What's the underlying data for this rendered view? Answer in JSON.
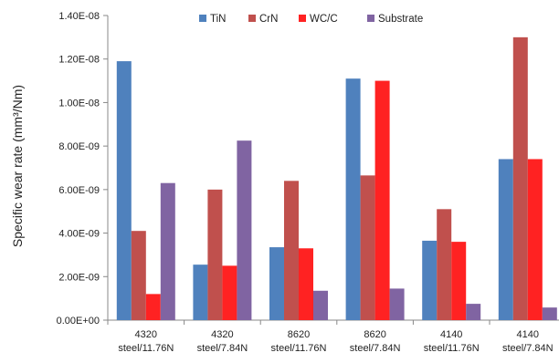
{
  "chart_data": {
    "type": "bar",
    "title": "",
    "xlabel": "",
    "ylabel": "Specific wear rate (mm³/Nm)",
    "ylim": [
      0,
      1.4e-08
    ],
    "yticks": [
      0,
      2e-09,
      4e-09,
      6e-09,
      8e-09,
      1e-08,
      1.2e-08,
      1.4e-08
    ],
    "ytick_labels": [
      "0.00E+00",
      "2.00E-09",
      "4.00E-09",
      "6.00E-09",
      "8.00E-09",
      "1.00E-08",
      "1.20E-08",
      "1.40E-08"
    ],
    "categories": [
      [
        "4320",
        "steel/11.76N"
      ],
      [
        "4320",
        "steel/7.84N"
      ],
      [
        "8620",
        "steel/11.76N"
      ],
      [
        "8620",
        "steel/7.84N"
      ],
      [
        "4140",
        "steel/11.76N"
      ],
      [
        "4140",
        "steel/7.84N"
      ]
    ],
    "series": [
      {
        "name": "TiN",
        "color": "#4f81bd",
        "values": [
          1.19e-08,
          2.55e-09,
          3.35e-09,
          1.11e-08,
          3.65e-09,
          7.4e-09
        ]
      },
      {
        "name": "CrN",
        "color": "#c0504d",
        "values": [
          4.1e-09,
          6e-09,
          6.4e-09,
          6.65e-09,
          5.1e-09,
          1.3e-08
        ]
      },
      {
        "name": "WC/C",
        "color": "#ff2222",
        "values": [
          1.2e-09,
          2.5e-09,
          3.3e-09,
          1.1e-08,
          3.6e-09,
          7.4e-09
        ]
      },
      {
        "name": "Substrate",
        "color": "#8064a2",
        "values": [
          6.3e-09,
          8.25e-09,
          1.35e-09,
          1.45e-09,
          7.5e-10,
          5.8e-10
        ]
      }
    ],
    "legend_position": "top",
    "grid": false
  }
}
